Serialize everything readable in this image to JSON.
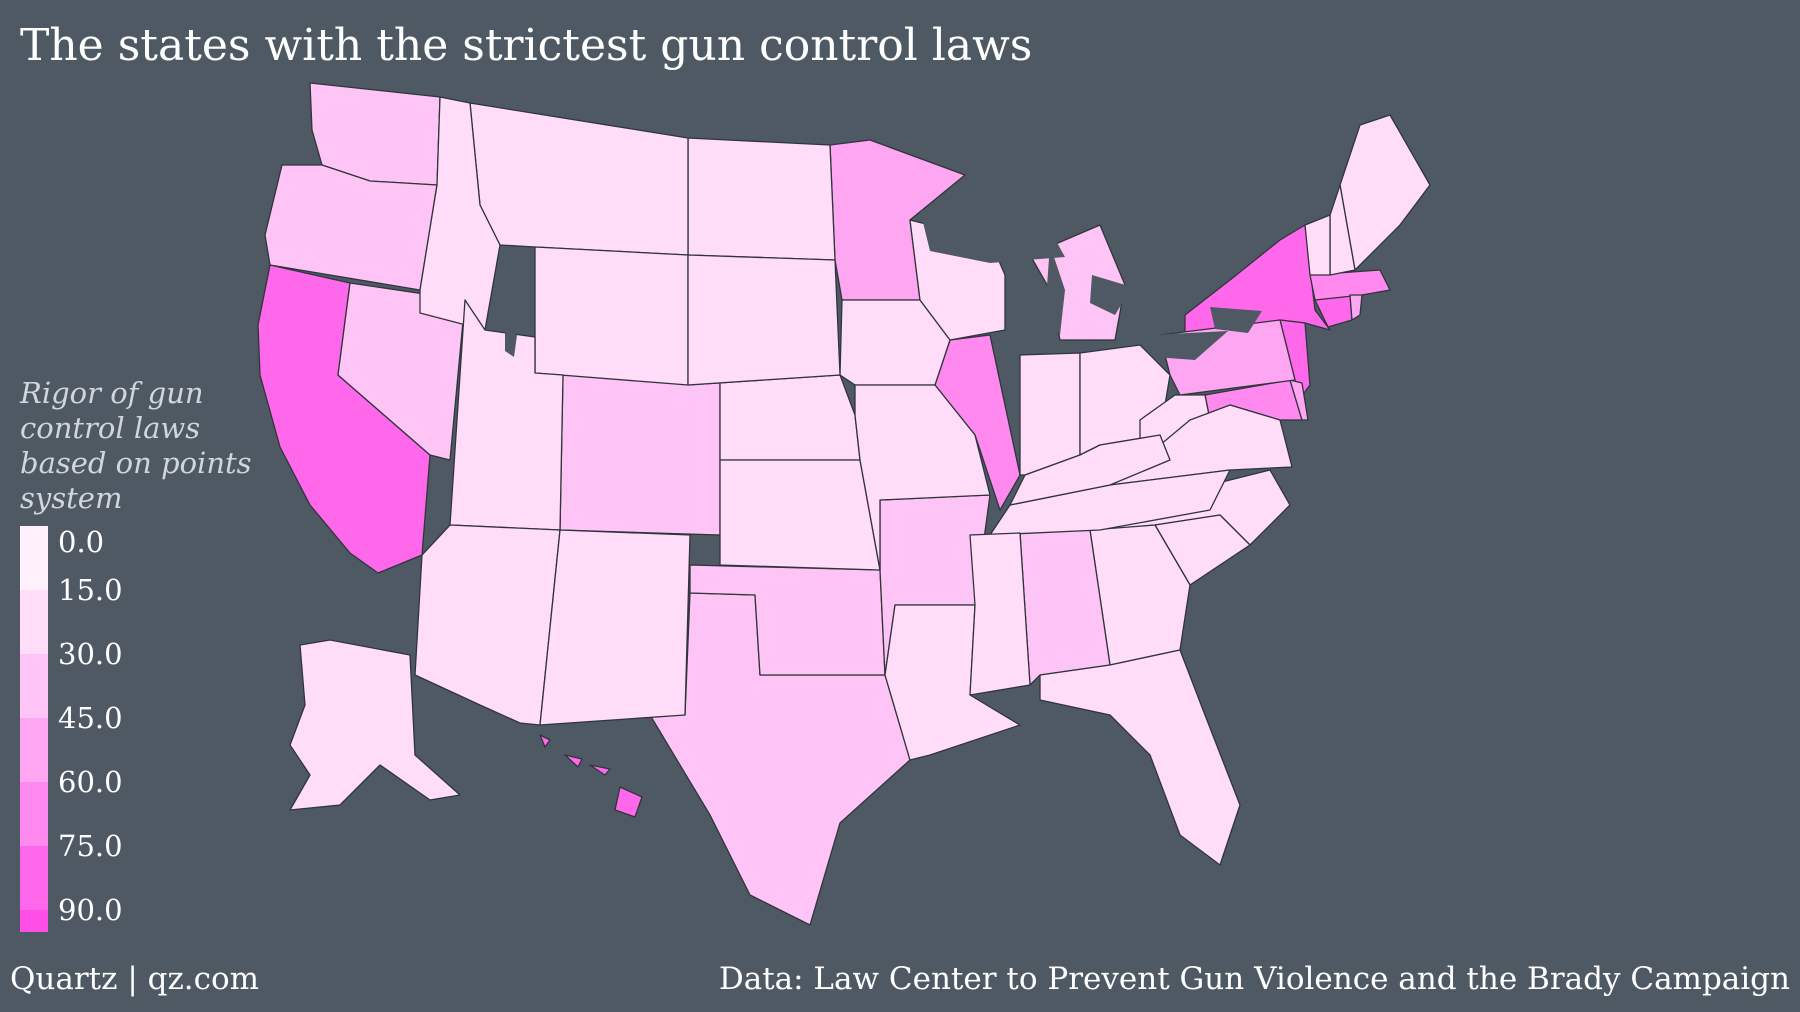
{
  "title": "The states with the strictest gun control laws",
  "legend": {
    "title": "Rigor of gun control laws based on points system",
    "ticks": [
      "0.0",
      "15.0",
      "30.0",
      "45.0",
      "60.0",
      "75.0",
      "90.0"
    ],
    "scale": [
      0,
      90
    ],
    "colors": [
      "#fff0fc",
      "#ffdcf8",
      "#ffc4f6",
      "#ffa6f2",
      "#ff89ef",
      "#ff68ea",
      "#ff4fe6"
    ]
  },
  "footer": {
    "left": "Quartz | qz.com",
    "right": "Data: Law Center to Prevent Gun Violence and the Brady Campaign"
  },
  "map": {
    "background": "#4f5964",
    "states": [
      {
        "id": "CA",
        "name": "California",
        "score": 81
      },
      {
        "id": "NY",
        "name": "New York",
        "score": 76
      },
      {
        "id": "NJ",
        "name": "New Jersey",
        "score": 72
      },
      {
        "id": "CT",
        "name": "Connecticut",
        "score": 73
      },
      {
        "id": "MA",
        "name": "Massachusetts",
        "score": 65
      },
      {
        "id": "RI",
        "name": "Rhode Island",
        "score": 44
      },
      {
        "id": "MD",
        "name": "Maryland",
        "score": 66
      },
      {
        "id": "DE",
        "name": "Delaware",
        "score": 50
      },
      {
        "id": "HI",
        "name": "Hawaii",
        "score": 70
      },
      {
        "id": "IL",
        "name": "Illinois",
        "score": 55
      },
      {
        "id": "PA",
        "name": "Pennsylvania",
        "score": 38
      },
      {
        "id": "MN",
        "name": "Minnesota",
        "score": 38
      },
      {
        "id": "WA",
        "name": "Washington",
        "score": 36
      },
      {
        "id": "OR",
        "name": "Oregon",
        "score": 24
      },
      {
        "id": "NV",
        "name": "Nevada",
        "score": 24
      },
      {
        "id": "CO",
        "name": "Colorado",
        "score": 26
      },
      {
        "id": "TX",
        "name": "Texas",
        "score": 25
      },
      {
        "id": "OK",
        "name": "Oklahoma",
        "score": 25
      },
      {
        "id": "AR",
        "name": "Arkansas",
        "score": 24
      },
      {
        "id": "NE",
        "name": "Nebraska",
        "score": 22
      },
      {
        "id": "ND",
        "name": "North Dakota",
        "score": 22
      },
      {
        "id": "IA",
        "name": "Iowa",
        "score": 21
      },
      {
        "id": "WI",
        "name": "Wisconsin",
        "score": 21
      },
      {
        "id": "MI",
        "name": "Michigan",
        "score": 23
      },
      {
        "id": "IN",
        "name": "Indiana",
        "score": 22
      },
      {
        "id": "OH",
        "name": "Ohio",
        "score": 21
      },
      {
        "id": "WV",
        "name": "West Virginia",
        "score": 20
      },
      {
        "id": "VA",
        "name": "Virginia",
        "score": 21
      },
      {
        "id": "NC",
        "name": "North Carolina",
        "score": 21
      },
      {
        "id": "SC",
        "name": "South Carolina",
        "score": 20
      },
      {
        "id": "GA",
        "name": "Georgia",
        "score": 21
      },
      {
        "id": "AL",
        "name": "Alabama",
        "score": 23
      },
      {
        "id": "FL",
        "name": "Florida",
        "score": 22
      },
      {
        "id": "TN",
        "name": "Tennessee",
        "score": 21
      },
      {
        "id": "ME",
        "name": "Maine",
        "score": 20
      },
      {
        "id": "NH",
        "name": "New Hampshire",
        "score": 20
      },
      {
        "id": "VT",
        "name": "Vermont",
        "score": 10
      },
      {
        "id": "MT",
        "name": "Montana",
        "score": 8
      },
      {
        "id": "ID",
        "name": "Idaho",
        "score": 8
      },
      {
        "id": "WY",
        "name": "Wyoming",
        "score": 8
      },
      {
        "id": "SD",
        "name": "South Dakota",
        "score": 8
      },
      {
        "id": "UT",
        "name": "Utah",
        "score": 9
      },
      {
        "id": "AZ",
        "name": "Arizona",
        "score": 8
      },
      {
        "id": "NM",
        "name": "New Mexico",
        "score": 8
      },
      {
        "id": "KS",
        "name": "Kansas",
        "score": 8
      },
      {
        "id": "MO",
        "name": "Missouri",
        "score": 9
      },
      {
        "id": "KY",
        "name": "Kentucky",
        "score": 8
      },
      {
        "id": "LA",
        "name": "Louisiana",
        "score": 8
      },
      {
        "id": "MS",
        "name": "Mississippi",
        "score": 8
      },
      {
        "id": "AK",
        "name": "Alaska",
        "score": 10
      }
    ]
  }
}
